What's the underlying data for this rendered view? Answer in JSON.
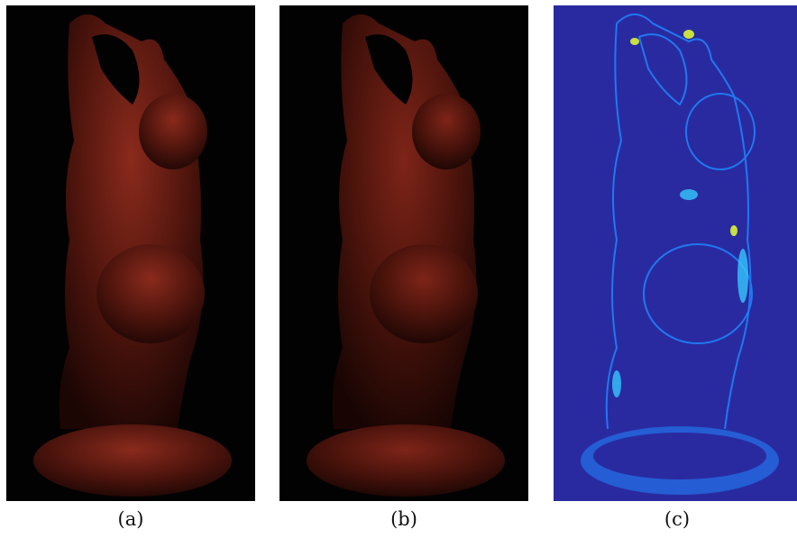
{
  "figure": {
    "panels": [
      {
        "id": "a",
        "caption": "(a)",
        "background": "#030202",
        "tone": "#6e1c12"
      },
      {
        "id": "b",
        "caption": "(b)",
        "background": "#030202",
        "tone": "#64190f"
      },
      {
        "id": "c",
        "caption": "(c)",
        "background": "#2a2aa0",
        "tone": "#1f86ff"
      }
    ]
  }
}
